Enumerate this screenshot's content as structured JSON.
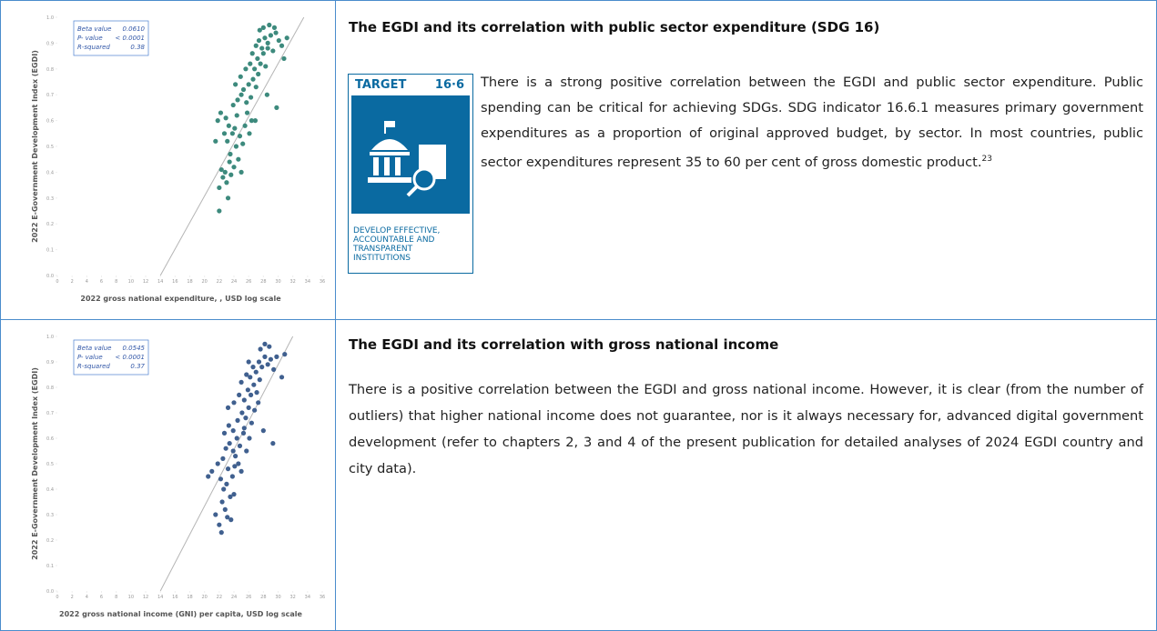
{
  "chart_data": [
    {
      "type": "scatter",
      "x_label": "2022 gross national expenditure, , USD log scale",
      "y_label": "2022 E-Government Development Index (EGDI)",
      "annotations": [
        [
          "Beta value",
          "0.0610"
        ],
        [
          "P- value",
          "< 0.0001"
        ],
        [
          "R-squared",
          "0.38"
        ]
      ],
      "color": "#3d8a7d",
      "trend_color": "#b5b5b5",
      "xlim": [
        0,
        36
      ],
      "ylim": [
        0,
        1
      ],
      "xticks": [
        0,
        2,
        4,
        6,
        8,
        10,
        12,
        14,
        16,
        18,
        20,
        22,
        24,
        26,
        28,
        30,
        32,
        34,
        36
      ],
      "yticks": [
        {
          "value": 0,
          "label": "0.0"
        },
        0.1,
        0.2,
        0.3,
        0.4,
        0.5,
        0.6,
        0.7,
        0.8,
        0.9,
        {
          "value": 1,
          "label": "1.0"
        }
      ],
      "trendline": {
        "x": [
          14,
          33.5
        ],
        "y": [
          0,
          1
        ]
      },
      "x": [
        22.0,
        22.3,
        22.5,
        22.8,
        23.0,
        23.2,
        23.4,
        23.6,
        22.7,
        23.1,
        23.5,
        24.0,
        24.3,
        24.6,
        25.0,
        21.5,
        21.8,
        22.2,
        22.9,
        23.3,
        23.8,
        24.1,
        24.4,
        24.8,
        25.2,
        25.5,
        25.8,
        26.1,
        26.4,
        23.9,
        24.5,
        25.0,
        25.3,
        25.7,
        26.0,
        26.3,
        26.6,
        27.0,
        27.3,
        24.2,
        24.9,
        25.6,
        26.2,
        26.8,
        27.2,
        27.6,
        28.0,
        28.3,
        28.6,
        26.5,
        27.0,
        27.4,
        27.8,
        28.2,
        28.6,
        29.0,
        29.3,
        29.7,
        30.1,
        30.5,
        31.2,
        27.5,
        28.0,
        28.8,
        29.5,
        30.8,
        29.8,
        28.5,
        26.9,
        22.0
      ],
      "y": [
        0.34,
        0.41,
        0.38,
        0.4,
        0.36,
        0.3,
        0.44,
        0.39,
        0.55,
        0.52,
        0.47,
        0.42,
        0.5,
        0.45,
        0.4,
        0.52,
        0.6,
        0.63,
        0.61,
        0.58,
        0.55,
        0.57,
        0.62,
        0.54,
        0.51,
        0.58,
        0.63,
        0.55,
        0.6,
        0.66,
        0.68,
        0.7,
        0.72,
        0.67,
        0.74,
        0.69,
        0.76,
        0.73,
        0.78,
        0.74,
        0.77,
        0.8,
        0.82,
        0.8,
        0.84,
        0.82,
        0.86,
        0.81,
        0.88,
        0.86,
        0.89,
        0.91,
        0.88,
        0.92,
        0.9,
        0.93,
        0.87,
        0.94,
        0.91,
        0.89,
        0.92,
        0.95,
        0.96,
        0.97,
        0.96,
        0.84,
        0.65,
        0.7,
        0.6,
        0.25
      ]
    },
    {
      "type": "scatter",
      "x_label": "2022 gross national income (GNI) per capita, USD log scale",
      "y_label": "2022 E-Government Development Index (EGDI)",
      "annotations": [
        [
          "Beta value",
          "0.0545"
        ],
        [
          "P- value",
          "< 0.0001"
        ],
        [
          "R-squared",
          "0.37"
        ]
      ],
      "color": "#40608f",
      "trend_color": "#b5b5b5",
      "xlim": [
        0,
        36
      ],
      "ylim": [
        0,
        1
      ],
      "xticks": [
        0,
        2,
        4,
        6,
        8,
        10,
        12,
        14,
        16,
        18,
        20,
        22,
        24,
        26,
        28,
        30,
        32,
        34,
        36
      ],
      "yticks": [
        {
          "value": 0,
          "label": "0.0"
        },
        0.1,
        0.2,
        0.3,
        0.4,
        0.5,
        0.6,
        0.7,
        0.8,
        0.9,
        {
          "value": 1,
          "label": "1.0"
        }
      ],
      "trendline": {
        "x": [
          14,
          32
        ],
        "y": [
          0,
          1
        ]
      },
      "x": [
        21.5,
        22.0,
        22.4,
        22.8,
        23.1,
        23.5,
        23.0,
        22.6,
        22.2,
        21.0,
        20.5,
        21.8,
        22.5,
        23.2,
        23.8,
        24.2,
        24.6,
        25.0,
        22.9,
        23.4,
        23.9,
        24.4,
        24.8,
        25.3,
        25.7,
        26.1,
        22.7,
        23.3,
        23.9,
        24.5,
        25.1,
        25.6,
        26.0,
        26.4,
        26.8,
        23.2,
        24.0,
        24.7,
        25.4,
        25.9,
        26.3,
        26.7,
        27.1,
        27.5,
        25.0,
        25.7,
        26.2,
        26.6,
        27.0,
        27.4,
        27.8,
        28.2,
        28.6,
        29.0,
        29.4,
        29.8,
        30.5,
        30.9,
        27.6,
        28.2,
        28.8,
        26.0,
        28.0,
        29.3,
        24.0,
        23.6,
        22.3,
        27.3,
        25.4,
        24.1
      ],
      "y": [
        0.3,
        0.26,
        0.35,
        0.32,
        0.29,
        0.37,
        0.42,
        0.4,
        0.44,
        0.47,
        0.45,
        0.5,
        0.52,
        0.48,
        0.45,
        0.53,
        0.5,
        0.47,
        0.56,
        0.58,
        0.55,
        0.6,
        0.57,
        0.62,
        0.55,
        0.6,
        0.62,
        0.65,
        0.63,
        0.67,
        0.7,
        0.68,
        0.72,
        0.66,
        0.71,
        0.72,
        0.74,
        0.77,
        0.75,
        0.79,
        0.77,
        0.81,
        0.78,
        0.83,
        0.82,
        0.85,
        0.84,
        0.88,
        0.86,
        0.9,
        0.88,
        0.92,
        0.89,
        0.91,
        0.87,
        0.92,
        0.84,
        0.93,
        0.95,
        0.97,
        0.96,
        0.9,
        0.63,
        0.58,
        0.38,
        0.28,
        0.23,
        0.74,
        0.64,
        0.49
      ]
    }
  ],
  "sections": [
    {
      "heading": "The EGDI and its correlation with public sector expenditure (SDG 16)",
      "paragraph": "There is a strong positive correlation between the EGDI and public sector expenditure. Public spending can be critical for achieving SDGs. SDG indicator 16.6.1 measures primary government expenditures as a proportion of original approved budget, by sector. In most countries, public sector expenditures represent 35 to 60 per cent of gross domestic product.",
      "footnote": "23"
    },
    {
      "heading": "The EGDI and its correlation with gross national income",
      "paragraph": "There is a positive correlation between the EGDI and gross national income. However, it is clear (from the number of outliers) that higher national income does not guarantee, nor is it always necessary for, advanced digital government development (refer to chapters 2, 3 and 4 of the present publication for detailed analyses of 2024 EGDI country and city data)."
    }
  ],
  "target_icon": {
    "label": "TARGET",
    "number": "16·6",
    "caption": [
      "DEVELOP EFFECTIVE,",
      "ACCOUNTABLE AND",
      "TRANSPARENT",
      "INSTITUTIONS"
    ]
  }
}
